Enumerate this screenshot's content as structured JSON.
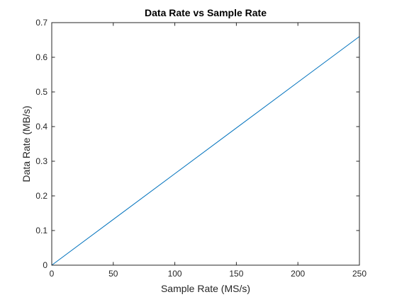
{
  "chart_data": {
    "type": "line",
    "title": "Data Rate vs Sample Rate",
    "xlabel": "Sample Rate (MS/s)",
    "ylabel": "Data Rate (MB/s)",
    "xlim": [
      0,
      250
    ],
    "ylim": [
      0,
      0.7
    ],
    "xticks": [
      0,
      50,
      100,
      150,
      200,
      250
    ],
    "yticks": [
      0,
      0.1,
      0.2,
      0.3,
      0.4,
      0.5,
      0.6,
      0.7
    ],
    "xtick_labels": [
      "0",
      "50",
      "100",
      "150",
      "200",
      "250"
    ],
    "ytick_labels": [
      "0",
      "0.1",
      "0.2",
      "0.3",
      "0.4",
      "0.5",
      "0.6",
      "0.7"
    ],
    "grid": false,
    "series": [
      {
        "color": "#0072bd",
        "x": [
          0,
          50,
          100,
          150,
          200,
          250
        ],
        "y": [
          0,
          0.132,
          0.264,
          0.396,
          0.528,
          0.66
        ]
      }
    ]
  }
}
